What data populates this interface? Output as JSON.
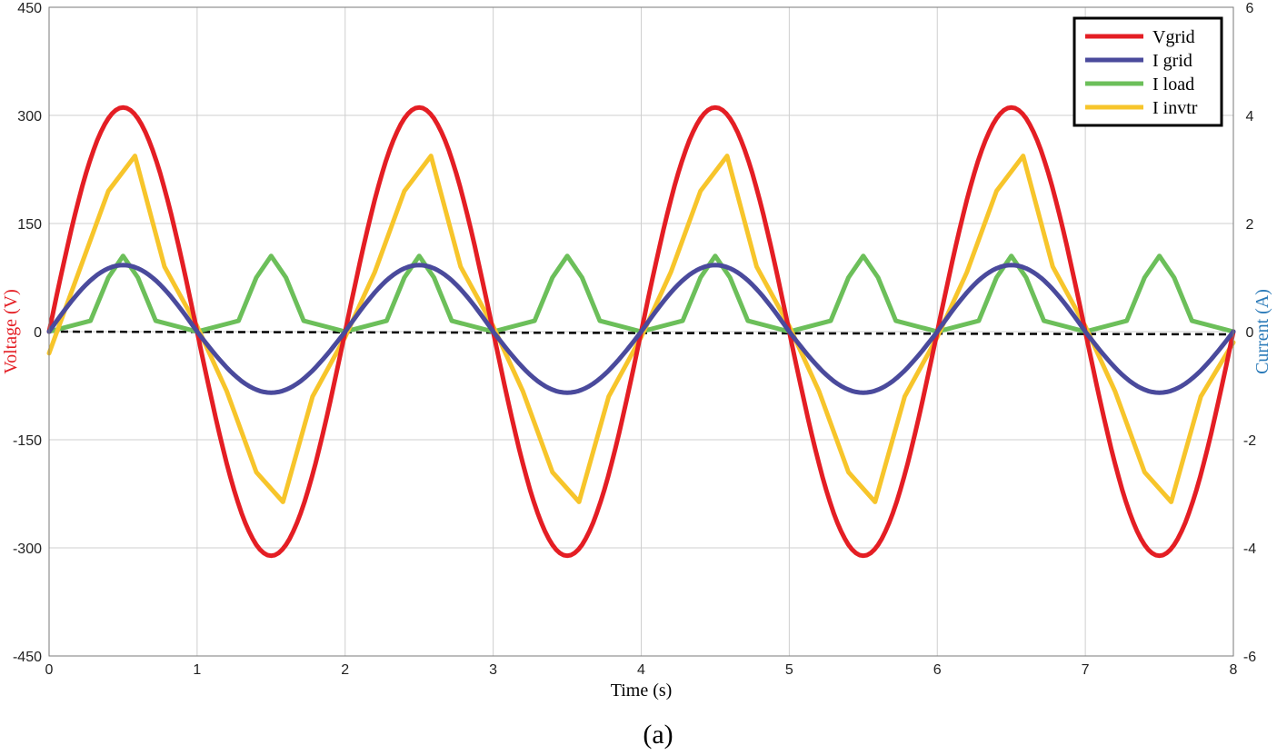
{
  "chart_data": {
    "type": "line",
    "caption": "(a)",
    "xlabel": "Time (s)",
    "ylabel_left": "Voltage (V)",
    "ylabel_right": "Current (A)",
    "xlim": [
      0,
      8
    ],
    "ylim_left": [
      -450,
      450
    ],
    "ylim_right": [
      -6,
      6
    ],
    "x_ticks": [
      "0",
      "1",
      "2",
      "3",
      "4",
      "5",
      "6",
      "7",
      "8"
    ],
    "y_left_ticks": [
      "450",
      "300",
      "150",
      "0",
      "-150",
      "-300",
      "-450"
    ],
    "y_right_ticks": [
      "6",
      "4",
      "2",
      "0",
      "-2",
      "-4",
      "-6"
    ],
    "grid": true,
    "legend_position": "top-right",
    "zero_reference_line": "dashed",
    "colors": {
      "vgrid": "#e41e24",
      "igrid": "#4a4a9c",
      "iload": "#6cbf5a",
      "invtr": "#f7c52b",
      "ylabel_left": "#e41e24",
      "ylabel_right": "#2a7ab8"
    },
    "series": [
      {
        "name": "Vgrid",
        "axis": "left",
        "x": [
          0,
          0.25,
          0.5,
          0.75,
          1,
          1.25,
          1.5,
          1.75,
          2,
          2.25,
          2.5,
          2.75,
          3,
          3.25,
          3.5,
          3.75,
          4,
          4.25,
          4.5,
          4.75,
          5,
          5.25,
          5.5,
          5.75,
          6,
          6.25,
          6.5,
          6.75,
          7,
          7.25,
          7.5,
          7.75,
          8
        ],
        "values": [
          0,
          220,
          311,
          220,
          0,
          -220,
          -311,
          -220,
          0,
          220,
          311,
          220,
          0,
          -220,
          -311,
          -220,
          0,
          220,
          311,
          220,
          0,
          -220,
          -311,
          -220,
          0,
          220,
          311,
          220,
          0,
          -220,
          -311,
          -220,
          0
        ]
      },
      {
        "name": "I grid",
        "axis": "right",
        "x": [
          0,
          0.25,
          0.5,
          0.75,
          1,
          1.25,
          1.5,
          1.75,
          2,
          2.25,
          2.5,
          2.75,
          3,
          3.25,
          3.5,
          3.75,
          4,
          4.25,
          4.5,
          4.75,
          5,
          5.25,
          5.5,
          5.75,
          6,
          6.25,
          6.5,
          6.75,
          7,
          7.25,
          7.5,
          7.75,
          8
        ],
        "values": [
          0,
          0.87,
          1.23,
          0.87,
          0,
          -0.8,
          -1.13,
          -0.8,
          0,
          0.87,
          1.23,
          0.87,
          0,
          -0.8,
          -1.13,
          -0.8,
          0,
          0.87,
          1.23,
          0.87,
          0,
          -0.8,
          -1.13,
          -0.8,
          0,
          0.87,
          1.23,
          0.87,
          0,
          -0.8,
          -1.13,
          -0.8,
          0
        ]
      },
      {
        "name": "I load",
        "axis": "right",
        "x": [
          0,
          0.28,
          0.4,
          0.5,
          0.6,
          0.72,
          1,
          1.28,
          1.4,
          1.5,
          1.6,
          1.72,
          2,
          2.28,
          2.4,
          2.5,
          2.6,
          2.72,
          3,
          3.28,
          3.4,
          3.5,
          3.6,
          3.72,
          4,
          4.28,
          4.4,
          4.5,
          4.6,
          4.72,
          5,
          5.28,
          5.4,
          5.5,
          5.6,
          5.72,
          6,
          6.28,
          6.4,
          6.5,
          6.6,
          6.72,
          7,
          7.28,
          7.4,
          7.5,
          7.6,
          7.72,
          8
        ],
        "values": [
          0,
          0.2,
          1,
          1.4,
          1,
          0.2,
          0,
          0.2,
          1,
          1.4,
          1,
          0.2,
          0,
          0.2,
          1,
          1.4,
          1,
          0.2,
          0,
          0.2,
          1,
          1.4,
          1,
          0.2,
          0,
          0.2,
          1,
          1.4,
          1,
          0.2,
          0,
          0.2,
          1,
          1.4,
          1,
          0.2,
          0,
          0.2,
          1,
          1.4,
          1,
          0.2,
          0,
          0.2,
          1,
          1.4,
          1,
          0.2,
          0
        ]
      },
      {
        "name": "I invtr",
        "axis": "right",
        "x": [
          0,
          0.2,
          0.4,
          0.58,
          0.78,
          1,
          1.2,
          1.4,
          1.58,
          1.78,
          2,
          2.2,
          2.4,
          2.58,
          2.78,
          3,
          3.2,
          3.4,
          3.58,
          3.78,
          4,
          4.2,
          4.4,
          4.58,
          4.78,
          5,
          5.2,
          5.4,
          5.58,
          5.78,
          6,
          6.2,
          6.4,
          6.58,
          6.78,
          7,
          7.2,
          7.4,
          7.58,
          7.78,
          8
        ],
        "values": [
          -0.4,
          1.1,
          2.6,
          3.25,
          1.2,
          0.1,
          -1.1,
          -2.6,
          -3.15,
          -1.2,
          -0.1,
          1.1,
          2.6,
          3.25,
          1.2,
          0.1,
          -1.1,
          -2.6,
          -3.15,
          -1.2,
          -0.1,
          1.1,
          2.6,
          3.25,
          1.2,
          0.1,
          -1.1,
          -2.6,
          -3.15,
          -1.2,
          -0.1,
          1.1,
          2.6,
          3.25,
          1.2,
          0.1,
          -1.1,
          -2.6,
          -3.15,
          -1.2,
          -0.2
        ]
      }
    ]
  }
}
